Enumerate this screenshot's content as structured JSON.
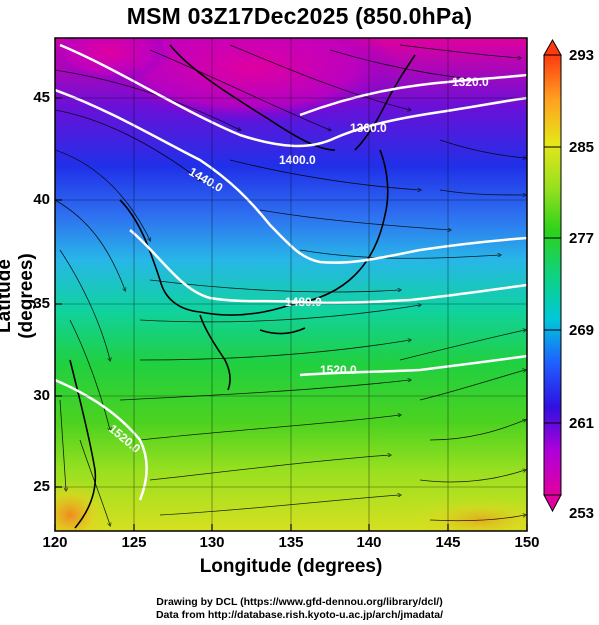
{
  "title": "MSM 03Z17Dec2025 (850.0hPa)",
  "x_axis": {
    "label": "Longitude (degrees)",
    "ticks": [
      "120",
      "125",
      "130",
      "135",
      "140",
      "145",
      "150"
    ]
  },
  "y_axis": {
    "label": "Latitude  (degrees)",
    "ticks": [
      "25",
      "30",
      "35",
      "40",
      "45"
    ]
  },
  "colorbar": {
    "ticks": [
      "293",
      "285",
      "277",
      "269",
      "261",
      "253"
    ],
    "min": 253,
    "max": 293,
    "palette": [
      "#e0009e",
      "#b000d8",
      "#3010e0",
      "#1e60ff",
      "#00c8d8",
      "#10d280",
      "#2cd21a",
      "#9ae020",
      "#e6e61a",
      "#ffa020",
      "#ff3a10"
    ]
  },
  "contours": {
    "labels": [
      "1320.0",
      "1360.0",
      "1400.0",
      "1440.0",
      "1480.0",
      "1520.0",
      "1520.0"
    ]
  },
  "credits": {
    "line1": "Drawing by DCL (https://www.gfd-dennou.org/library/dcl/)",
    "line2": "Data from http://database.rish.kyoto-u.ac.jp/arch/jmadata/"
  }
}
